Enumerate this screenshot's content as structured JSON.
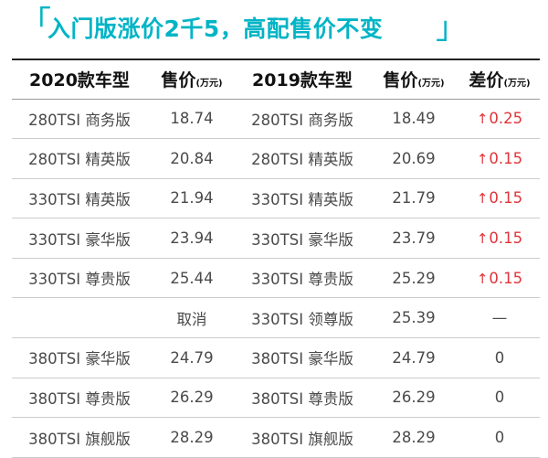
{
  "title": "入门版涨价2千5，高配售价不变",
  "table": {
    "headers": [
      {
        "label": "2020款车型",
        "unit": ""
      },
      {
        "label": "售价",
        "unit": "(万元)"
      },
      {
        "label": "2019款车型",
        "unit": ""
      },
      {
        "label": "售价",
        "unit": "(万元)"
      },
      {
        "label": "差价",
        "unit": "(万元)"
      }
    ],
    "rows": [
      {
        "model_2020": "280TSI 商务版",
        "price_2020": "18.74",
        "model_2019": "280TSI 商务版",
        "price_2019": "18.49",
        "diff": "0.25",
        "up": true
      },
      {
        "model_2020": "280TSI 精英版",
        "price_2020": "20.84",
        "model_2019": "280TSI 精英版",
        "price_2019": "20.69",
        "diff": "0.15",
        "up": true
      },
      {
        "model_2020": "330TSI 精英版",
        "price_2020": "21.94",
        "model_2019": "330TSI 精英版",
        "price_2019": "21.79",
        "diff": "0.15",
        "up": true
      },
      {
        "model_2020": "330TSI 豪华版",
        "price_2020": "23.94",
        "model_2019": "330TSI 豪华版",
        "price_2019": "23.79",
        "diff": "0.15",
        "up": true
      },
      {
        "model_2020": "330TSI 尊贵版",
        "price_2020": "25.44",
        "model_2019": "330TSI 尊贵版",
        "price_2019": "25.29",
        "diff": "0.15",
        "up": true
      },
      {
        "model_2020": "",
        "price_2020": "取消",
        "model_2019": "330TSI 领尊版",
        "price_2019": "25.39",
        "diff": "—",
        "up": false
      },
      {
        "model_2020": "380TSI 豪华版",
        "price_2020": "24.79",
        "model_2019": "380TSI 豪华版",
        "price_2019": "24.79",
        "diff": "0",
        "up": false
      },
      {
        "model_2020": "380TSI 尊贵版",
        "price_2020": "26.29",
        "model_2019": "380TSI 尊贵版",
        "price_2019": "26.29",
        "diff": "0",
        "up": false
      },
      {
        "model_2020": "380TSI 旗舰版",
        "price_2020": "28.29",
        "model_2019": "380TSI 旗舰版",
        "price_2019": "28.29",
        "diff": "0",
        "up": false
      }
    ]
  },
  "colors": {
    "accent": "#00b4c6",
    "increase": "#e0343a"
  },
  "icons": {
    "increase": "up-arrow-icon"
  }
}
